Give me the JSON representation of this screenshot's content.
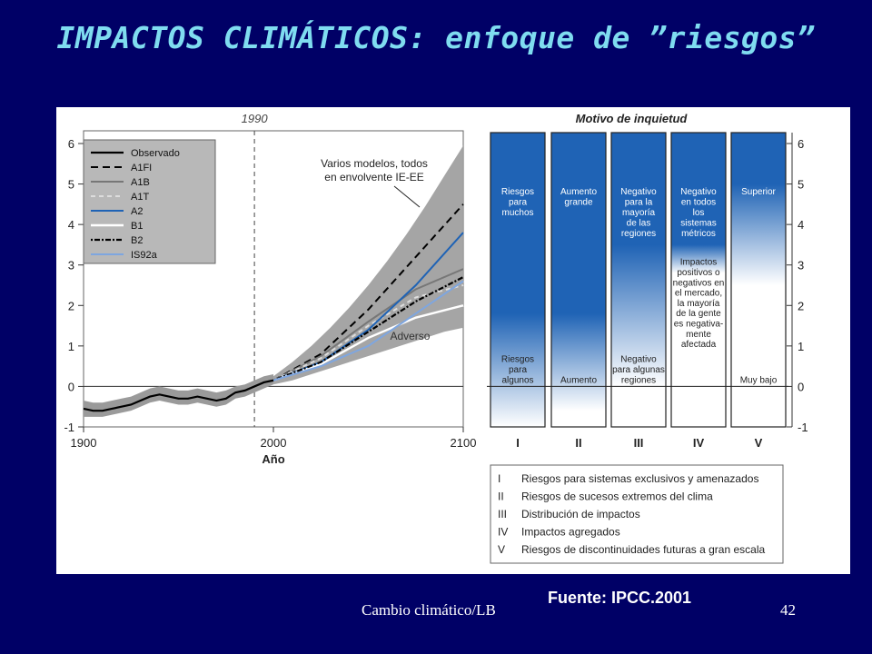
{
  "slide": {
    "title": "IMPACTOS CLIMÁTICOS: enfoque de ”riesgos”",
    "source": "Fuente: IPCC.2001",
    "footer": "Cambio climático/LB",
    "page_number": "42"
  },
  "colors": {
    "background": "#000066",
    "title": "#7fdcf0",
    "envelope": "#a0a0a0",
    "bar_blue": "#1f63b5"
  },
  "chart_data": [
    {
      "type": "line",
      "xlabel": "Año",
      "xlim": [
        1900,
        2100
      ],
      "ylim": [
        -1,
        6
      ],
      "xticks": [
        1900,
        2000,
        2100
      ],
      "yticks": [
        -1,
        0,
        1,
        2,
        3,
        4,
        5,
        6
      ],
      "reference_year": "1990",
      "envelope_label": "Varios modelos, todos\nen envolvente IE-EE",
      "envelope_label_lines": [
        "Varios modelos, todos",
        "en envolvente IE-EE"
      ],
      "band_label": "Adverso",
      "envelope": {
        "x": [
          2000,
          2010,
          2020,
          2030,
          2040,
          2050,
          2060,
          2070,
          2080,
          2090,
          2100
        ],
        "lower": [
          0.05,
          0.15,
          0.3,
          0.45,
          0.6,
          0.75,
          0.9,
          1.05,
          1.2,
          1.35,
          1.45
        ],
        "upper": [
          0.25,
          0.6,
          1.0,
          1.45,
          1.95,
          2.5,
          3.1,
          3.75,
          4.45,
          5.2,
          5.95
        ]
      },
      "observed": {
        "x": [
          1900,
          1905,
          1910,
          1915,
          1920,
          1925,
          1930,
          1935,
          1940,
          1945,
          1950,
          1955,
          1960,
          1965,
          1970,
          1975,
          1980,
          1985,
          1990,
          1995,
          2000
        ],
        "y": [
          -0.55,
          -0.6,
          -0.6,
          -0.55,
          -0.5,
          -0.45,
          -0.35,
          -0.25,
          -0.2,
          -0.25,
          -0.3,
          -0.3,
          -0.25,
          -0.3,
          -0.35,
          -0.3,
          -0.15,
          -0.1,
          0.0,
          0.1,
          0.15
        ],
        "noise_lower": [
          -0.75,
          -0.75,
          -0.75,
          -0.7,
          -0.65,
          -0.6,
          -0.5,
          -0.4,
          -0.35,
          -0.4,
          -0.45,
          -0.45,
          -0.4,
          -0.45,
          -0.5,
          -0.45,
          -0.3,
          -0.25,
          -0.15,
          -0.05,
          0.05
        ],
        "noise_upper": [
          -0.35,
          -0.4,
          -0.4,
          -0.35,
          -0.3,
          -0.25,
          -0.15,
          -0.05,
          0.0,
          -0.05,
          -0.1,
          -0.1,
          -0.05,
          -0.1,
          -0.15,
          -0.1,
          0.0,
          0.05,
          0.15,
          0.25,
          0.3
        ]
      },
      "series": [
        {
          "name": "Observado",
          "color": "#000000",
          "dash": "solid",
          "width": 2.2
        },
        {
          "name": "A1FI",
          "color": "#000000",
          "dash": "long",
          "width": 2,
          "x": [
            2000,
            2025,
            2050,
            2075,
            2100
          ],
          "y": [
            0.15,
            0.8,
            1.9,
            3.2,
            4.5
          ]
        },
        {
          "name": "A1B",
          "color": "#777777",
          "dash": "solid",
          "width": 2,
          "x": [
            2000,
            2025,
            2050,
            2075,
            2100
          ],
          "y": [
            0.15,
            0.75,
            1.6,
            2.4,
            2.9
          ]
        },
        {
          "name": "A1T",
          "color": "#dddddd",
          "dash": "short",
          "width": 2,
          "x": [
            2000,
            2025,
            2050,
            2075,
            2100
          ],
          "y": [
            0.15,
            0.7,
            1.5,
            2.2,
            2.5
          ]
        },
        {
          "name": "A2",
          "color": "#1f63b5",
          "dash": "solid",
          "width": 2,
          "x": [
            2000,
            2025,
            2050,
            2075,
            2100
          ],
          "y": [
            0.15,
            0.6,
            1.4,
            2.5,
            3.8
          ]
        },
        {
          "name": "B1",
          "color": "#ffffff",
          "dash": "solid",
          "width": 2.4,
          "x": [
            2000,
            2025,
            2050,
            2075,
            2100
          ],
          "y": [
            0.15,
            0.55,
            1.2,
            1.7,
            2.0
          ]
        },
        {
          "name": "B2",
          "color": "#000000",
          "dash": "dotdash",
          "width": 2.2,
          "x": [
            2000,
            2025,
            2050,
            2075,
            2100
          ],
          "y": [
            0.15,
            0.6,
            1.35,
            2.1,
            2.7
          ]
        },
        {
          "name": "IS92a",
          "color": "#7ea6e0",
          "dash": "solid",
          "width": 2,
          "x": [
            2000,
            2025,
            2050,
            2075,
            2100
          ],
          "y": [
            0.15,
            0.5,
            1.0,
            1.8,
            2.6
          ]
        }
      ]
    },
    {
      "type": "bar",
      "title": "Motivo de inquietud",
      "ylim": [
        -1,
        6
      ],
      "yticks": [
        -1,
        0,
        1,
        2,
        3,
        4,
        5,
        6
      ],
      "categories": [
        "I",
        "II",
        "III",
        "IV",
        "V"
      ],
      "columns": [
        {
          "id": "I",
          "top_label": [
            "Riesgos",
            "para",
            "muchos"
          ],
          "bottom_label": [
            "Riesgos",
            "para",
            "algunos"
          ],
          "solid_from": 1.8,
          "fade_to": -1.0
        },
        {
          "id": "II",
          "top_label": [
            "Aumento",
            "grande"
          ],
          "bottom_label": [
            "Aumento"
          ],
          "solid_from": 1.8,
          "fade_to": -0.6
        },
        {
          "id": "III",
          "top_label": [
            "Negativo",
            "para la",
            "mayoría",
            "de las",
            "regiones"
          ],
          "bottom_label": [
            "Negativo",
            "para algunas",
            "regiones"
          ],
          "solid_from": 3.5,
          "fade_to": 0.0
        },
        {
          "id": "IV",
          "top_label": [
            "Negativo",
            "en todos",
            "los",
            "sistemas",
            "métricos"
          ],
          "middle_label": [
            "Impactos",
            "positivos o",
            "negativos en",
            "el mercado,",
            "la mayoría",
            "de la gente",
            "es negativa-",
            "mente",
            "afectada"
          ],
          "solid_from": 3.5,
          "fade_to": 2.8
        },
        {
          "id": "V",
          "top_label": [
            "Superior"
          ],
          "bottom_label": [
            "Muy bajo"
          ],
          "solid_from": 5.0,
          "fade_to": 2.5
        }
      ],
      "legend": [
        {
          "numeral": "I",
          "text": "Riesgos para sistemas exclusivos y amenazados"
        },
        {
          "numeral": "II",
          "text": "Riesgos de sucesos extremos del clima"
        },
        {
          "numeral": "III",
          "text": "Distribución de impactos"
        },
        {
          "numeral": "IV",
          "text": "Impactos agregados"
        },
        {
          "numeral": "V",
          "text": "Riesgos de discontinuidades futuras a gran escala"
        }
      ]
    }
  ]
}
